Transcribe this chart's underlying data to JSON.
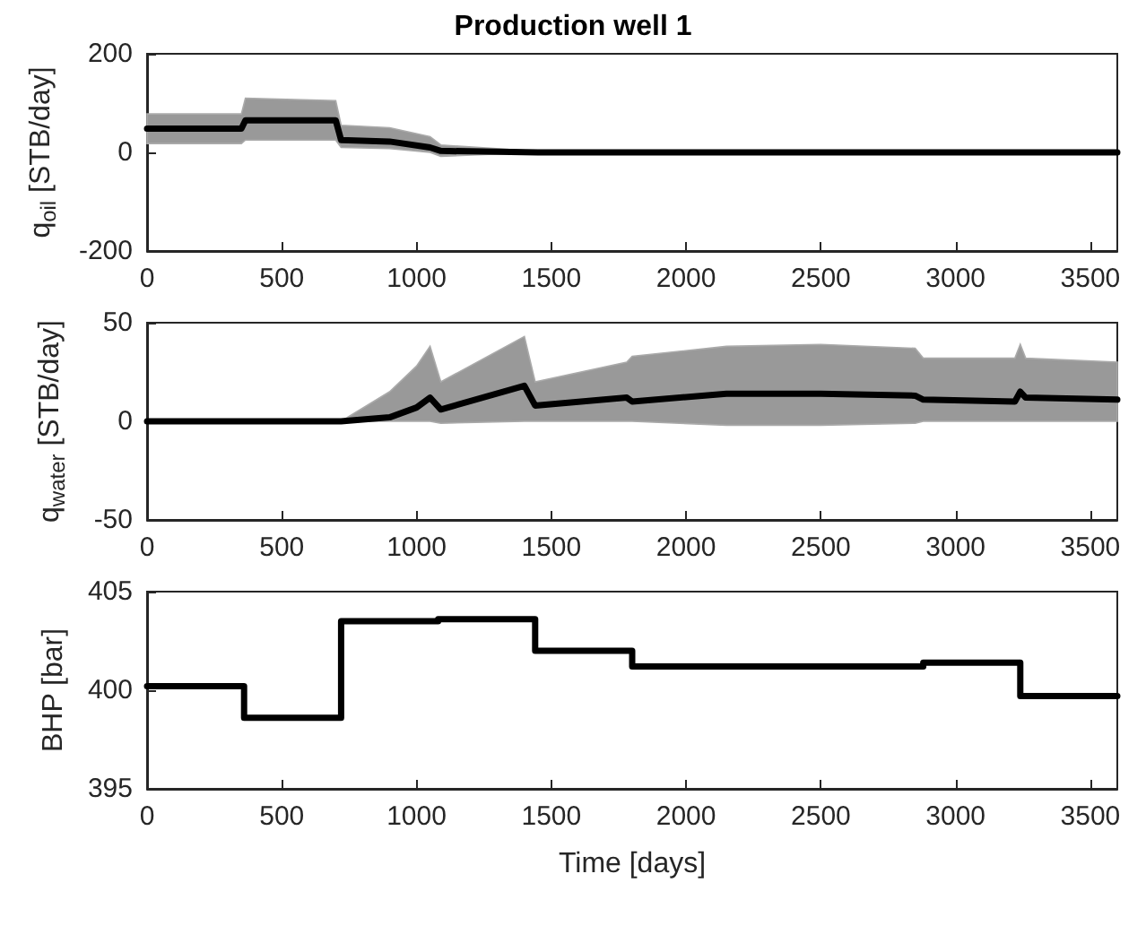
{
  "chart_data": [
    {
      "type": "line",
      "title": "Production well 1",
      "ylabel": "q$_{oil}$ [STB/day]",
      "xlim": [
        0,
        3600
      ],
      "xticks": [
        0,
        500,
        1000,
        1500,
        2000,
        2500,
        3000,
        3500
      ],
      "ylim": [
        -200,
        200
      ],
      "yticks": [
        -200,
        0,
        200
      ],
      "marker": "none",
      "line_style": "solid",
      "series": [
        {
          "color": "#000000",
          "x": [
            0,
            350,
            365,
            700,
            720,
            900,
            1050,
            1090,
            1450,
            3600
          ],
          "values": [
            48,
            48,
            65,
            65,
            25,
            22,
            10,
            3,
            0,
            0
          ],
          "lower": [
            18,
            18,
            25,
            25,
            10,
            8,
            0,
            -8,
            0,
            0
          ],
          "upper": [
            78,
            78,
            110,
            105,
            55,
            50,
            32,
            15,
            2,
            0
          ]
        }
      ]
    },
    {
      "type": "line",
      "ylabel": "q$_{water}$ [STB/day]",
      "xlim": [
        0,
        3600
      ],
      "xticks": [
        0,
        500,
        1000,
        1500,
        2000,
        2500,
        3000,
        3500
      ],
      "ylim": [
        -50,
        50
      ],
      "yticks": [
        -50,
        0,
        50
      ],
      "marker": "none",
      "line_style": "solid",
      "series": [
        {
          "color": "#000000",
          "x": [
            0,
            720,
            900,
            1000,
            1050,
            1090,
            1400,
            1440,
            1780,
            1800,
            2150,
            2500,
            2850,
            2880,
            3220,
            3240,
            3260,
            3600
          ],
          "values": [
            0,
            0,
            2,
            7,
            12,
            6,
            18,
            8,
            12,
            10,
            14,
            14,
            13,
            11,
            10,
            15,
            12,
            11
          ],
          "lower": [
            0,
            0,
            0,
            0,
            0,
            -1,
            0,
            0,
            0,
            0,
            -2,
            -2,
            -1,
            0,
            0,
            0,
            0,
            0
          ],
          "upper": [
            0,
            0,
            15,
            28,
            38,
            20,
            43,
            20,
            30,
            33,
            38,
            39,
            37,
            32,
            32,
            39,
            32,
            30
          ]
        }
      ]
    },
    {
      "type": "step",
      "ylabel": "BHP [bar]",
      "xlabel": "Time [days]",
      "xlim": [
        0,
        3600
      ],
      "xticks": [
        0,
        500,
        1000,
        1500,
        2000,
        2500,
        3000,
        3500
      ],
      "ylim": [
        395,
        405
      ],
      "yticks": [
        395,
        400,
        405
      ],
      "marker": "none",
      "line_style": "solid",
      "series": [
        {
          "color": "#000000",
          "x": [
            0,
            360,
            720,
            1080,
            1440,
            1800,
            2160,
            2520,
            2880,
            3240,
            3600
          ],
          "values": [
            400.2,
            398.6,
            403.5,
            403.6,
            402,
            401.2,
            401.2,
            401.2,
            401.4,
            399.7,
            399.7
          ]
        }
      ]
    }
  ]
}
